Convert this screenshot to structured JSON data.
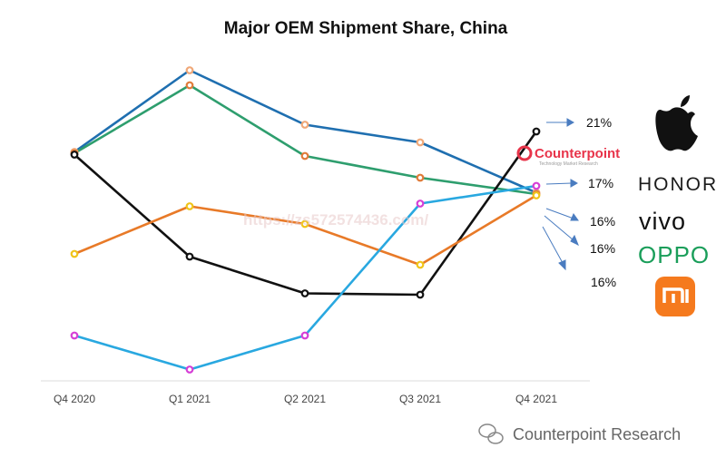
{
  "chart_data": {
    "type": "line",
    "title": "Major OEM Shipment Share, China",
    "categories": [
      "Q4 2020",
      "Q1 2021",
      "Q2 2021",
      "Q3 2021",
      "Q4 2021"
    ],
    "ylim": [
      3,
      26
    ],
    "grid": false,
    "series": [
      {
        "color": "#1f6fb0",
        "values": [
          19.5,
          25.5,
          21.5,
          20.2,
          16.5
        ],
        "marker_color": "#f0a878",
        "end_label": ""
      },
      {
        "color": "#2e9e6e",
        "values": [
          19.4,
          24.4,
          19.2,
          17.6,
          16.4
        ],
        "marker_color": "#e07b39",
        "end_label": "16%"
      },
      {
        "color": "#111111",
        "values": [
          19.3,
          11.8,
          9.1,
          9.0,
          21.0
        ],
        "marker_color": "#111111",
        "end_label": "21%"
      },
      {
        "color": "#e87a28",
        "values": [
          12.0,
          15.5,
          14.2,
          11.2,
          16.3
        ],
        "marker_color": "#f0c419",
        "end_label": "16%"
      },
      {
        "color": "#29a8e0",
        "values": [
          6.0,
          3.5,
          6.0,
          15.7,
          17.0
        ],
        "marker_color": "#d63fd6",
        "end_label": "17%"
      }
    ],
    "end_labels_order": [
      "21%",
      "17%",
      "16%",
      "16%",
      "16%"
    ]
  },
  "brands": [
    "apple-logo",
    "HONOR",
    "vivo",
    "OPPO",
    "mi-logo"
  ],
  "brand_colors": {
    "oppo": "#1a9e5a",
    "mi": "#f57a1e",
    "counterpoint": "#e8344a"
  },
  "logo_text": {
    "main": "Counterpoint",
    "sub": "Technology Market Research"
  },
  "watermark": "https://zs572574436.com/",
  "footer": "Counterpoint Research"
}
